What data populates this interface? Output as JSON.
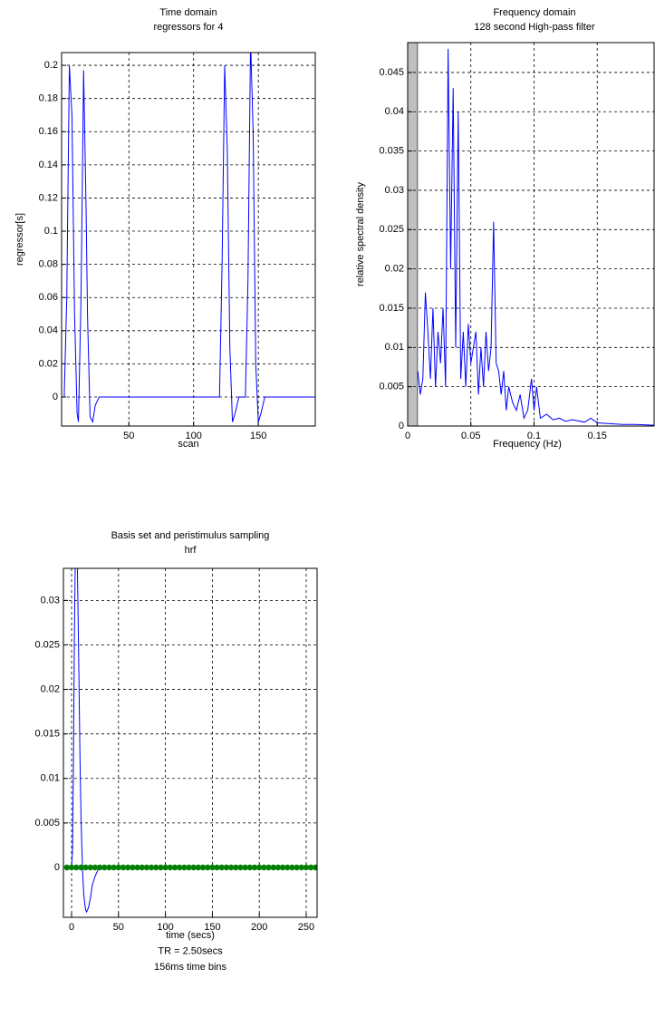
{
  "chart_data": [
    {
      "type": "line",
      "title": "Time domain",
      "subtitle": "regressors for 4",
      "xlabel": [
        "scan"
      ],
      "ylabel": "regressor[s]",
      "xlim": [
        -2,
        194
      ],
      "ylim": [
        -0.0175,
        0.2077
      ],
      "xticks": [
        50,
        100,
        150
      ],
      "yticks": [
        0,
        0.02,
        0.04,
        0.06,
        0.08,
        0.1,
        0.12,
        0.14,
        0.16,
        0.18,
        0.2
      ],
      "grid": true,
      "series": [
        {
          "color": "#0000ff",
          "x": [
            0,
            2,
            4,
            6,
            8,
            10,
            11,
            13,
            15,
            17,
            18,
            20,
            22,
            24,
            27,
            30,
            120,
            122,
            124,
            126,
            128,
            130,
            132,
            135,
            140,
            142,
            144,
            146,
            148,
            150,
            152,
            155,
            158,
            194
          ],
          "values": [
            0,
            0.06,
            0.2,
            0.17,
            0.05,
            -0.01,
            -0.015,
            0.06,
            0.197,
            0.11,
            0.05,
            -0.012,
            -0.015,
            -0.005,
            0,
            0,
            0,
            0.08,
            0.2,
            0.15,
            0.03,
            -0.015,
            -0.01,
            0,
            0,
            0.07,
            0.215,
            0.16,
            0.02,
            -0.015,
            -0.01,
            0,
            0,
            0
          ]
        }
      ]
    },
    {
      "type": "line",
      "title": "Frequency domain",
      "subtitle": "128 second High-pass filter",
      "xlabel": [
        "Frequency (Hz)"
      ],
      "ylabel": "relative spectral density",
      "xlim": [
        0,
        0.195
      ],
      "ylim": [
        0,
        0.0488
      ],
      "xticks": [
        0,
        0.05,
        0.1,
        0.15
      ],
      "yticks": [
        0,
        0.005,
        0.01,
        0.015,
        0.02,
        0.025,
        0.03,
        0.035,
        0.04,
        0.045
      ],
      "grid": true,
      "highpass_band": [
        0,
        0.0078
      ],
      "band_color": "#c0c0c0",
      "series": [
        {
          "color": "#0000ff",
          "x": [
            0.008,
            0.01,
            0.012,
            0.014,
            0.016,
            0.018,
            0.02,
            0.022,
            0.024,
            0.026,
            0.028,
            0.03,
            0.032,
            0.034,
            0.036,
            0.038,
            0.04,
            0.042,
            0.044,
            0.046,
            0.048,
            0.05,
            0.052,
            0.054,
            0.056,
            0.058,
            0.06,
            0.062,
            0.064,
            0.066,
            0.068,
            0.07,
            0.072,
            0.074,
            0.076,
            0.078,
            0.08,
            0.083,
            0.086,
            0.089,
            0.092,
            0.095,
            0.098,
            0.1,
            0.102,
            0.105,
            0.11,
            0.115,
            0.12,
            0.125,
            0.13,
            0.14,
            0.145,
            0.15,
            0.16,
            0.17,
            0.18,
            0.195
          ],
          "values": [
            0.007,
            0.004,
            0.006,
            0.017,
            0.012,
            0.006,
            0.015,
            0.005,
            0.012,
            0.008,
            0.015,
            0.005,
            0.048,
            0.02,
            0.043,
            0.01,
            0.04,
            0.006,
            0.012,
            0.005,
            0.013,
            0.008,
            0.01,
            0.012,
            0.004,
            0.01,
            0.005,
            0.012,
            0.007,
            0.01,
            0.026,
            0.008,
            0.007,
            0.004,
            0.007,
            0.002,
            0.005,
            0.003,
            0.002,
            0.004,
            0.001,
            0.002,
            0.006,
            0.002,
            0.005,
            0.001,
            0.0015,
            0.0008,
            0.001,
            0.0006,
            0.0008,
            0.0005,
            0.001,
            0.0004,
            0.0003,
            0.0002,
            0.0002,
            0.0001
          ]
        }
      ]
    },
    {
      "type": "line",
      "title": "Basis set and peristimulus sampling",
      "subtitle": "hrf",
      "xlabel": [
        "time (secs)",
        "TR = 2.50secs",
        "156ms time bins"
      ],
      "xlim": [
        -8.7,
        261.6
      ],
      "ylim": [
        -0.0056,
        0.0336
      ],
      "xticks": [
        0,
        50,
        100,
        150,
        200,
        250
      ],
      "yticks": [
        0,
        0.005,
        0.01,
        0.015,
        0.02,
        0.025,
        0.03
      ],
      "grid": true,
      "series": [
        {
          "color": "#0000ff",
          "x": [
            0,
            1,
            2,
            3,
            4,
            5,
            6,
            7,
            8,
            9,
            10,
            11,
            12,
            13,
            14,
            15,
            16,
            18,
            20,
            22,
            25,
            28,
            32
          ],
          "values": [
            0,
            0.002,
            0.012,
            0.026,
            0.035,
            0.038,
            0.035,
            0.028,
            0.02,
            0.012,
            0.006,
            0.002,
            -0.001,
            -0.003,
            -0.004,
            -0.0048,
            -0.005,
            -0.0045,
            -0.0035,
            -0.002,
            -0.001,
            -0.0003,
            0
          ]
        },
        {
          "color": "#008000",
          "style": "markers",
          "x": [
            -5,
            0,
            5,
            10,
            15,
            20,
            25,
            30,
            35,
            40,
            45,
            50,
            55,
            60,
            65,
            70,
            75,
            80,
            85,
            90,
            95,
            100,
            105,
            110,
            115,
            120,
            125,
            130,
            135,
            140,
            145,
            150,
            155,
            160,
            165,
            170,
            175,
            180,
            185,
            190,
            195,
            200,
            205,
            210,
            215,
            220,
            225,
            230,
            235,
            240,
            245,
            250,
            255,
            260
          ],
          "values": [
            0,
            0,
            0,
            0,
            0,
            0,
            0,
            0,
            0,
            0,
            0,
            0,
            0,
            0,
            0,
            0,
            0,
            0,
            0,
            0,
            0,
            0,
            0,
            0,
            0,
            0,
            0,
            0,
            0,
            0,
            0,
            0,
            0,
            0,
            0,
            0,
            0,
            0,
            0,
            0,
            0,
            0,
            0,
            0,
            0,
            0,
            0,
            0,
            0,
            0,
            0,
            0,
            0,
            0
          ]
        }
      ]
    }
  ]
}
